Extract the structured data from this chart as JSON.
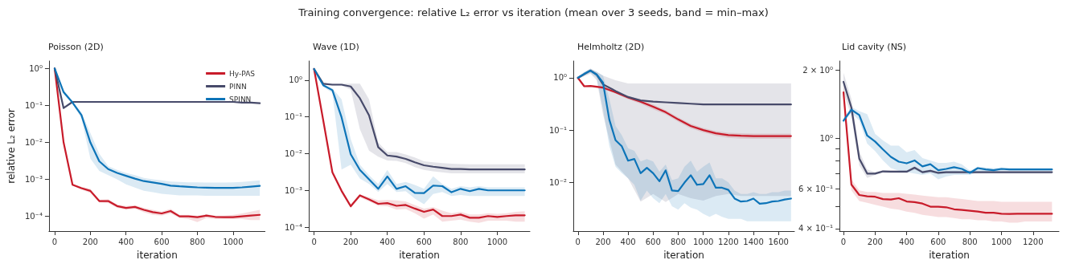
{
  "chart_data": [
    {
      "type": "line",
      "title": "Poisson (2D)",
      "annotations": [
        "Training convergence: relative L₂ error vs iteration (mean over 3 seeds, band = min–max)"
      ],
      "xlabel": "iteration",
      "ylabel": "relative L₂ error",
      "log": true,
      "legend": "top right",
      "marker": "none",
      "line_style": "solid",
      "xlim": [
        -32,
        1181
      ],
      "xticks": [
        0,
        200,
        400,
        600,
        800,
        1000
      ],
      "ylim": [
        4e-05,
        1.6
      ],
      "yticks": [
        {
          "value": 1,
          "label": "10⁰"
        },
        {
          "value": 0.1,
          "label": "10⁻¹"
        },
        {
          "value": 0.01,
          "label": "10⁻²"
        },
        {
          "value": 0.001,
          "label": "10⁻³"
        },
        {
          "value": 0.0001,
          "label": "10⁻⁴"
        }
      ],
      "x": [
        0,
        50,
        100,
        150,
        200,
        250,
        300,
        350,
        400,
        450,
        500,
        550,
        600,
        650,
        700,
        750,
        800,
        850,
        900,
        950,
        1000,
        1050,
        1100,
        1150
      ],
      "series": [
        {
          "name": "Hy-PAS",
          "color": "#c81b2a",
          "values": [
            1,
            0.01,
            0.00072,
            0.00058,
            0.00049,
            0.00026,
            0.00026,
            0.00019,
            0.00017,
            0.00018,
            0.00015,
            0.00013,
            0.00012,
            0.00014,
            0.0001,
            0.0001,
            9.5e-05,
            0.000105,
            9.7e-05,
            9.5e-05,
            9.5e-05,
            0.0001,
            0.000105,
            0.00011
          ],
          "lower": [
            0.95,
            0.009,
            0.00068,
            0.00053,
            0.00043,
            0.00024,
            0.00023,
            0.00017,
            0.00015,
            0.00016,
            0.00013,
            0.00011,
            0.000105,
            0.00012,
            9e-05,
            8.5e-05,
            7e-05,
            9e-05,
            8.5e-05,
            8.5e-05,
            8.5e-05,
            8.5e-05,
            8e-05,
            8e-05
          ],
          "upper": [
            1.05,
            0.011,
            0.00076,
            0.00063,
            0.00056,
            0.00028,
            0.00029,
            0.00021,
            0.00019,
            0.0002,
            0.00017,
            0.00015,
            0.000135,
            0.00016,
            0.00011,
            0.00011,
            0.000105,
            0.000115,
            0.000105,
            0.000105,
            0.00011,
            0.00012,
            0.000135,
            0.00015
          ]
        },
        {
          "name": "PINN",
          "color": "#474a6a",
          "values": [
            1,
            0.085,
            0.125,
            0.125,
            0.125,
            0.125,
            0.125,
            0.125,
            0.125,
            0.125,
            0.125,
            0.125,
            0.125,
            0.125,
            0.125,
            0.125,
            0.125,
            0.125,
            0.125,
            0.125,
            0.125,
            0.12,
            0.12,
            0.115
          ]
        },
        {
          "name": "SPINN",
          "color": "#0d74b8",
          "values": [
            1,
            0.23,
            0.12,
            0.055,
            0.01,
            0.0031,
            0.0019,
            0.0015,
            0.00125,
            0.00105,
            0.0009,
            0.00083,
            0.00076,
            0.00068,
            0.00065,
            0.00063,
            0.00061,
            0.0006,
            0.00059,
            0.00059,
            0.00059,
            0.00061,
            0.00064,
            0.00067
          ],
          "lower": [
            0.95,
            0.2,
            0.11,
            0.045,
            0.0037,
            0.0017,
            0.0013,
            0.001,
            0.00074,
            0.0006,
            0.00049,
            0.00045,
            0.00041,
            0.00039,
            0.00037,
            0.00037,
            0.00037,
            0.00036,
            0.00036,
            0.00036,
            0.00036,
            0.00036,
            0.00036,
            0.00036
          ],
          "upper": [
            1.05,
            0.26,
            0.13,
            0.065,
            0.018,
            0.005,
            0.0023,
            0.0018,
            0.0015,
            0.0013,
            0.0011,
            0.001,
            0.00095,
            0.00088,
            0.00085,
            0.00083,
            0.00083,
            0.00082,
            0.00082,
            0.00082,
            0.00083,
            0.00085,
            0.0009,
            0.00095
          ]
        }
      ]
    },
    {
      "type": "line",
      "title": "Wave (1D)",
      "xlabel": "iteration",
      "log": true,
      "marker": "none",
      "line_style": "solid",
      "xlim": [
        -29,
        1178
      ],
      "xticks": [
        0,
        200,
        400,
        600,
        800,
        1000
      ],
      "ylim": [
        7.8e-05,
        3.3
      ],
      "yticks": [
        {
          "value": 1,
          "label": "10⁰"
        },
        {
          "value": 0.1,
          "label": "10⁻¹"
        },
        {
          "value": 0.01,
          "label": "10⁻²"
        },
        {
          "value": 0.001,
          "label": "10⁻³"
        },
        {
          "value": 0.0001,
          "label": "10⁻⁴"
        }
      ],
      "x": [
        0,
        50,
        100,
        150,
        200,
        250,
        300,
        350,
        400,
        450,
        500,
        550,
        600,
        650,
        700,
        750,
        800,
        850,
        900,
        950,
        1000,
        1050,
        1100,
        1150
      ],
      "series": [
        {
          "color": "#c81b2a",
          "values": [
            2.0,
            0.08,
            0.0031,
            0.00097,
            0.00037,
            0.00073,
            0.00057,
            0.00043,
            0.00045,
            0.00038,
            0.0004,
            0.00032,
            0.00026,
            0.0003,
            0.0002,
            0.0002,
            0.00022,
            0.00018,
            0.00018,
            0.0002,
            0.00019,
            0.0002,
            0.00021,
            0.00021
          ],
          "lower": [
            1.9,
            0.07,
            0.0027,
            0.00085,
            0.00033,
            0.00064,
            0.0005,
            0.00038,
            0.00037,
            0.0003,
            0.00031,
            0.00024,
            0.00017,
            0.00022,
            0.00014,
            0.00015,
            0.00016,
            0.00014,
            0.00013,
            0.00015,
            0.00015,
            0.00015,
            0.00014,
            0.00014
          ],
          "upper": [
            2.1,
            0.09,
            0.0035,
            0.0011,
            0.00042,
            0.00078,
            0.00065,
            0.00053,
            0.00055,
            0.00053,
            0.0005,
            0.0004,
            0.00032,
            0.00035,
            0.00028,
            0.00024,
            0.00026,
            0.00022,
            0.00022,
            0.00024,
            0.00023,
            0.00024,
            0.00026,
            0.00027
          ]
        },
        {
          "color": "#474a6a",
          "values": [
            2.0,
            0.79,
            0.75,
            0.75,
            0.67,
            0.32,
            0.11,
            0.015,
            0.0089,
            0.0083,
            0.0072,
            0.0058,
            0.0048,
            0.0044,
            0.0041,
            0.0038,
            0.0038,
            0.0037,
            0.0037,
            0.0037,
            0.0037,
            0.0037,
            0.0037,
            0.0037
          ],
          "lower": [
            1.9,
            0.75,
            0.7,
            0.7,
            0.55,
            0.046,
            0.012,
            0.0082,
            0.0065,
            0.0063,
            0.0055,
            0.0043,
            0.0036,
            0.0033,
            0.0031,
            0.0029,
            0.0029,
            0.0029,
            0.0029,
            0.0029,
            0.0029,
            0.0029,
            0.0029,
            0.0029
          ],
          "upper": [
            2.1,
            0.83,
            0.8,
            0.8,
            0.8,
            0.8,
            0.3,
            0.02,
            0.011,
            0.011,
            0.0095,
            0.0078,
            0.0062,
            0.0058,
            0.0055,
            0.0053,
            0.0052,
            0.0051,
            0.0051,
            0.0051,
            0.0051,
            0.0051,
            0.0051,
            0.0051
          ]
        },
        {
          "color": "#0d74b8",
          "values": [
            2.0,
            0.72,
            0.53,
            0.097,
            0.0096,
            0.0036,
            0.002,
            0.0011,
            0.0024,
            0.0011,
            0.0013,
            0.00085,
            0.00084,
            0.00135,
            0.0013,
            0.00089,
            0.0011,
            0.00095,
            0.0011,
            0.001,
            0.001,
            0.001,
            0.001,
            0.001
          ],
          "lower": [
            1.9,
            0.65,
            0.45,
            0.0037,
            0.005,
            0.0021,
            0.0015,
            0.0009,
            0.0015,
            0.0009,
            0.00095,
            0.0006,
            0.00042,
            0.0008,
            0.0009,
            0.0007,
            0.00075,
            0.0007,
            0.0007,
            0.0007,
            0.0007,
            0.0007,
            0.0007,
            0.0007
          ],
          "upper": [
            2.1,
            0.78,
            0.6,
            0.3,
            0.025,
            0.005,
            0.0026,
            0.0015,
            0.0036,
            0.0015,
            0.0017,
            0.0014,
            0.0011,
            0.0024,
            0.0015,
            0.0011,
            0.0013,
            0.0012,
            0.0013,
            0.0012,
            0.0012,
            0.0012,
            0.0012,
            0.0012
          ]
        }
      ]
    },
    {
      "type": "line",
      "title": "Helmholtz (2D)",
      "xlabel": "iteration",
      "log": true,
      "marker": "none",
      "line_style": "solid",
      "xlim": [
        -37,
        1727
      ],
      "xticks": [
        0,
        200,
        400,
        600,
        800,
        1000,
        1200,
        1400,
        1600
      ],
      "ylim": [
        0.00117,
        2.1
      ],
      "yticks": [
        {
          "value": 1,
          "label": "10⁰"
        },
        {
          "value": 0.1,
          "label": "10⁻¹"
        },
        {
          "value": 0.01,
          "label": "10⁻²"
        }
      ],
      "series": [
        {
          "color": "#c81b2a",
          "x": [
            0,
            50,
            100,
            200,
            300,
            400,
            500,
            600,
            700,
            800,
            900,
            1000,
            1100,
            1200,
            1300,
            1400,
            1500,
            1600,
            1700
          ],
          "values": [
            1.0,
            0.69,
            0.7,
            0.65,
            0.53,
            0.42,
            0.35,
            0.28,
            0.22,
            0.16,
            0.12,
            0.1,
            0.087,
            0.08,
            0.078,
            0.077,
            0.077,
            0.077,
            0.077
          ],
          "lower": [
            0.97,
            0.66,
            0.67,
            0.61,
            0.5,
            0.39,
            0.32,
            0.25,
            0.2,
            0.145,
            0.108,
            0.09,
            0.078,
            0.071,
            0.069,
            0.068,
            0.068,
            0.068,
            0.068
          ],
          "upper": [
            1.03,
            0.72,
            0.73,
            0.69,
            0.56,
            0.45,
            0.38,
            0.31,
            0.24,
            0.175,
            0.132,
            0.11,
            0.096,
            0.089,
            0.087,
            0.086,
            0.086,
            0.086,
            0.086
          ]
        },
        {
          "color": "#474a6a",
          "x": [
            0,
            100,
            150,
            200,
            300,
            400,
            500,
            600,
            700,
            800,
            900,
            1000,
            1100,
            1200,
            1300,
            1400,
            1500,
            1600,
            1700
          ],
          "values": [
            1.0,
            1.38,
            1.15,
            0.75,
            0.56,
            0.43,
            0.37,
            0.35,
            0.34,
            0.33,
            0.32,
            0.31,
            0.31,
            0.31,
            0.31,
            0.31,
            0.31,
            0.31,
            0.31
          ],
          "lower": [
            0.95,
            1.2,
            0.9,
            0.2,
            0.022,
            0.012,
            0.0043,
            0.006,
            0.0042,
            0.006,
            0.005,
            0.0045,
            0.0055,
            0.006,
            0.0055,
            0.0055,
            0.0055,
            0.0055,
            0.0055
          ],
          "upper": [
            1.05,
            1.5,
            1.3,
            1.1,
            0.9,
            0.78,
            0.78,
            0.78,
            0.78,
            0.78,
            0.78,
            0.78,
            0.78,
            0.78,
            0.78,
            0.78,
            0.78,
            0.78,
            0.78
          ]
        },
        {
          "color": "#0d74b8",
          "x": [
            0,
            50,
            100,
            150,
            200,
            250,
            300,
            350,
            400,
            450,
            500,
            550,
            600,
            650,
            700,
            750,
            800,
            850,
            900,
            950,
            1000,
            1050,
            1100,
            1150,
            1200,
            1250,
            1300,
            1350,
            1400,
            1450,
            1500,
            1550,
            1600,
            1650,
            1700
          ],
          "values": [
            1.0,
            1.19,
            1.37,
            1.15,
            0.81,
            0.16,
            0.064,
            0.049,
            0.026,
            0.028,
            0.015,
            0.019,
            0.015,
            0.0105,
            0.017,
            0.007,
            0.0068,
            0.0099,
            0.0137,
            0.009,
            0.0093,
            0.0137,
            0.0079,
            0.0079,
            0.0072,
            0.0049,
            0.0043,
            0.0044,
            0.0049,
            0.0039,
            0.004,
            0.0043,
            0.0044,
            0.0047,
            0.0049
          ],
          "lower": [
            0.95,
            1.1,
            1.25,
            1.0,
            0.25,
            0.05,
            0.02,
            0.015,
            0.012,
            0.009,
            0.0045,
            0.007,
            0.005,
            0.004,
            0.006,
            0.0035,
            0.003,
            0.004,
            0.0033,
            0.003,
            0.0025,
            0.0022,
            0.0025,
            0.0022,
            0.002,
            0.002,
            0.002,
            0.0018,
            0.0018,
            0.0018,
            0.0018,
            0.0018,
            0.0018,
            0.0018,
            0.0018
          ],
          "upper": [
            1.05,
            1.3,
            1.5,
            1.3,
            1.1,
            0.4,
            0.12,
            0.08,
            0.045,
            0.04,
            0.025,
            0.028,
            0.025,
            0.016,
            0.022,
            0.011,
            0.012,
            0.02,
            0.026,
            0.016,
            0.02,
            0.024,
            0.012,
            0.012,
            0.01,
            0.007,
            0.006,
            0.006,
            0.0065,
            0.006,
            0.006,
            0.0065,
            0.0065,
            0.007,
            0.007
          ]
        }
      ]
    },
    {
      "type": "line",
      "title": "Lid cavity (NS)",
      "xlabel": "iteration",
      "log": true,
      "marker": "none",
      "line_style": "solid",
      "xlim": [
        -25,
        1364
      ],
      "xticks": [
        0,
        200,
        400,
        600,
        800,
        1000,
        1200
      ],
      "ylim": [
        0.39,
        2.2
      ],
      "yticks": [
        {
          "value": 2,
          "label": "2 × 10⁰"
        },
        {
          "value": 1,
          "label": "10⁰"
        },
        {
          "value": 0.9,
          "label": null
        },
        {
          "value": 0.8,
          "label": null
        },
        {
          "value": 0.7,
          "label": null
        },
        {
          "value": 0.6,
          "label": "6 × 10⁻¹"
        },
        {
          "value": 0.5,
          "label": null
        },
        {
          "value": 0.4,
          "label": "4 × 10⁻¹"
        }
      ],
      "x": [
        0,
        50,
        100,
        150,
        200,
        250,
        300,
        350,
        400,
        450,
        500,
        550,
        600,
        650,
        700,
        750,
        800,
        850,
        900,
        950,
        1000,
        1050,
        1100,
        1150,
        1200,
        1250,
        1320
      ],
      "series": [
        {
          "color": "#c81b2a",
          "values": [
            1.6,
            0.626,
            0.563,
            0.556,
            0.553,
            0.54,
            0.538,
            0.545,
            0.527,
            0.524,
            0.516,
            0.5,
            0.5,
            0.497,
            0.487,
            0.484,
            0.48,
            0.476,
            0.47,
            0.47,
            0.465,
            0.464,
            0.465,
            0.465,
            0.465,
            0.465,
            0.465
          ],
          "lower": [
            1.5,
            0.59,
            0.53,
            0.52,
            0.51,
            0.5,
            0.49,
            0.485,
            0.475,
            0.47,
            0.46,
            0.455,
            0.45,
            0.45,
            0.445,
            0.44,
            0.44,
            0.435,
            0.435,
            0.43,
            0.43,
            0.425,
            0.425,
            0.43,
            0.43,
            0.43,
            0.43
          ],
          "upper": [
            1.75,
            0.66,
            0.59,
            0.58,
            0.58,
            0.575,
            0.575,
            0.575,
            0.57,
            0.565,
            0.56,
            0.555,
            0.55,
            0.55,
            0.545,
            0.54,
            0.535,
            0.53,
            0.53,
            0.53,
            0.525,
            0.525,
            0.525,
            0.525,
            0.525,
            0.525,
            0.525
          ]
        },
        {
          "color": "#474a6a",
          "values": [
            1.78,
            1.37,
            0.815,
            0.7,
            0.7,
            0.716,
            0.714,
            0.714,
            0.714,
            0.743,
            0.71,
            0.72,
            0.705,
            0.71,
            0.71,
            0.71,
            0.71,
            0.71,
            0.71,
            0.71,
            0.71,
            0.71,
            0.71,
            0.71,
            0.71,
            0.71,
            0.71
          ],
          "lower": [
            1.6,
            1.25,
            0.76,
            0.67,
            0.69,
            0.705,
            0.705,
            0.705,
            0.705,
            0.73,
            0.7,
            0.71,
            0.695,
            0.7,
            0.7,
            0.7,
            0.7,
            0.7,
            0.7,
            0.7,
            0.7,
            0.7,
            0.7,
            0.7,
            0.7,
            0.7,
            0.7
          ],
          "upper": [
            1.95,
            1.5,
            0.88,
            0.73,
            0.71,
            0.725,
            0.722,
            0.722,
            0.722,
            0.755,
            0.72,
            0.73,
            0.715,
            0.72,
            0.72,
            0.72,
            0.72,
            0.72,
            0.72,
            0.72,
            0.72,
            0.72,
            0.72,
            0.72,
            0.72,
            0.72,
            0.72
          ]
        },
        {
          "color": "#0d74b8",
          "values": [
            1.2,
            1.34,
            1.27,
            1.03,
            0.97,
            0.895,
            0.83,
            0.79,
            0.777,
            0.8,
            0.753,
            0.77,
            0.724,
            0.734,
            0.747,
            0.734,
            0.705,
            0.74,
            0.73,
            0.724,
            0.734,
            0.73,
            0.73,
            0.73,
            0.73,
            0.73,
            0.73
          ],
          "lower": [
            1.17,
            1.3,
            1.2,
            0.95,
            0.88,
            0.8,
            0.74,
            0.72,
            0.71,
            0.7,
            0.69,
            0.7,
            0.66,
            0.68,
            0.69,
            0.69,
            0.69,
            0.71,
            0.71,
            0.71,
            0.72,
            0.72,
            0.72,
            0.72,
            0.72,
            0.72,
            0.72
          ],
          "upper": [
            1.23,
            1.38,
            1.32,
            1.28,
            1.05,
            0.98,
            0.93,
            0.93,
            0.87,
            0.89,
            0.82,
            0.8,
            0.78,
            0.78,
            0.79,
            0.77,
            0.72,
            0.75,
            0.745,
            0.74,
            0.745,
            0.74,
            0.74,
            0.74,
            0.74,
            0.74,
            0.74
          ]
        }
      ]
    }
  ]
}
